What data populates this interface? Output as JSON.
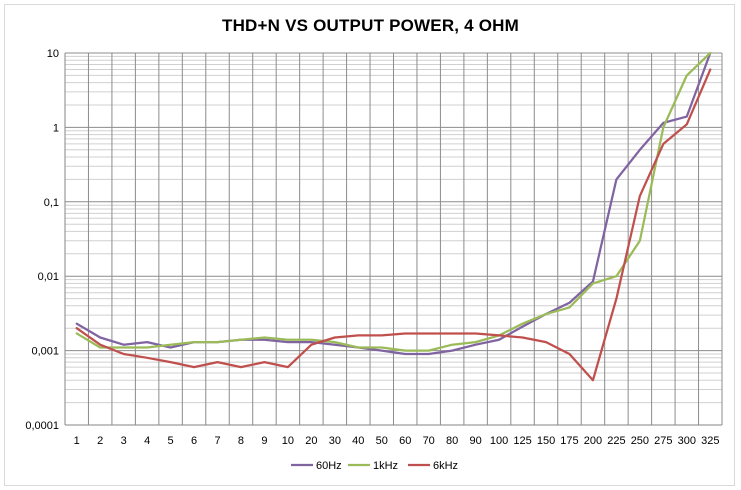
{
  "chart_data": {
    "type": "line",
    "title": "THD+N VS OUTPUT POWER, 4 OHM",
    "xlabel": "",
    "ylabel": "",
    "y_scale": "log",
    "ylim": [
      0.0001,
      10
    ],
    "y_ticks": [
      "0,0001",
      "0,001",
      "0,01",
      "0,1",
      "1",
      "10"
    ],
    "grid": true,
    "legend_position": "bottom",
    "categories": [
      "1",
      "2",
      "3",
      "4",
      "5",
      "6",
      "7",
      "8",
      "9",
      "10",
      "20",
      "30",
      "40",
      "50",
      "60",
      "70",
      "80",
      "90",
      "100",
      "125",
      "150",
      "175",
      "200",
      "225",
      "250",
      "275",
      "300",
      "325"
    ],
    "series": [
      {
        "name": "60Hz",
        "color": "#8064a2",
        "values": [
          0.0023,
          0.0015,
          0.0012,
          0.0013,
          0.0011,
          0.0013,
          0.0013,
          0.0014,
          0.0014,
          0.0013,
          0.0013,
          0.0012,
          0.0011,
          0.001,
          0.0009,
          0.0009,
          0.001,
          0.0012,
          0.0014,
          0.0021,
          0.0031,
          0.0044,
          0.0085,
          0.2,
          0.5,
          1.15,
          1.4,
          10
        ]
      },
      {
        "name": "1kHz",
        "color": "#9bbb59",
        "values": [
          0.0017,
          0.0011,
          0.0011,
          0.0011,
          0.0012,
          0.0013,
          0.0013,
          0.0014,
          0.0015,
          0.0014,
          0.0014,
          0.0013,
          0.0011,
          0.0011,
          0.001,
          0.001,
          0.0012,
          0.0013,
          0.0016,
          0.0023,
          0.0031,
          0.0038,
          0.008,
          0.01,
          0.03,
          1.0,
          5.0,
          10
        ]
      },
      {
        "name": "6kHz",
        "color": "#c0504d",
        "values": [
          0.002,
          0.0012,
          0.0009,
          0.0008,
          0.0007,
          0.0006,
          0.0007,
          0.0006,
          0.0007,
          0.0006,
          0.0012,
          0.0015,
          0.0016,
          0.0016,
          0.0017,
          0.0017,
          0.0017,
          0.0017,
          0.0016,
          0.0015,
          0.0013,
          0.0009,
          0.0004,
          0.005,
          0.12,
          0.6,
          1.1,
          6.0
        ]
      }
    ]
  }
}
